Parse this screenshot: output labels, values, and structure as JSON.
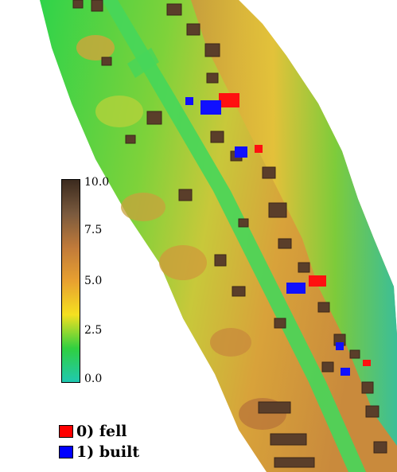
{
  "colorbar": {
    "ticks": [
      "10.0",
      "7.5",
      "5.0",
      "2.5",
      "0.0"
    ],
    "colors": [
      "#3b2a1e",
      "#7a5a3e",
      "#c07a3a",
      "#e8a030",
      "#f5e020",
      "#30d040",
      "#20c8b0"
    ]
  },
  "legend": {
    "items": [
      {
        "label": "0) fell",
        "color": "#ff0000"
      },
      {
        "label": "1) built",
        "color": "#0000ff"
      }
    ]
  }
}
